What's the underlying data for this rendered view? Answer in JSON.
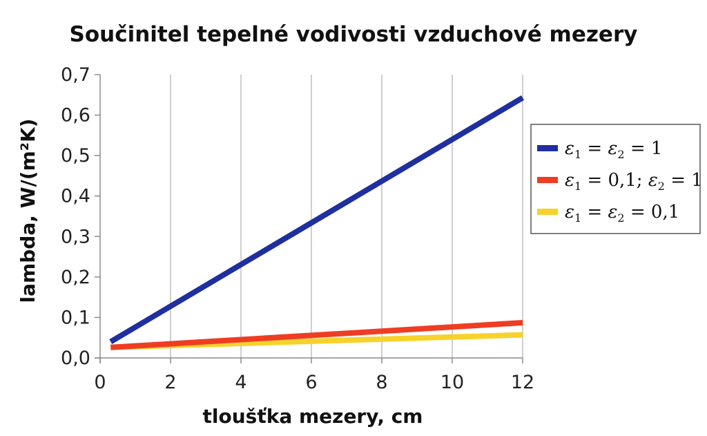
{
  "chart_data": {
    "type": "line",
    "title": "Součinitel tepelné vodivosti vzduchové mezery",
    "xlabel": "tloušťka mezery, cm",
    "ylabel": "lambda, W/(m²K)",
    "xlim": [
      0,
      12
    ],
    "ylim": [
      0,
      0.7
    ],
    "x_ticks": [
      "0",
      "2",
      "4",
      "6",
      "8",
      "10",
      "12"
    ],
    "y_ticks": [
      "0,0",
      "0,1",
      "0,2",
      "0,3",
      "0,4",
      "0,5",
      "0,6",
      "0,7"
    ],
    "grid": "vertical",
    "legend_position": "right",
    "series": [
      {
        "name": "ε1 = ε2 = 1",
        "legend_parts": [
          "ε",
          "1",
          " = ",
          "ε",
          "2",
          " = 1"
        ],
        "color": "#1f2f9f",
        "x": [
          0.3,
          12
        ],
        "y": [
          0.04,
          0.643
        ]
      },
      {
        "name": "ε1 = 0,1; ε2 = 1",
        "legend_parts": [
          "ε",
          "1",
          " = 0,1; ",
          "ε",
          "2",
          " = 1"
        ],
        "color": "#ee3d23",
        "x": [
          0.3,
          12
        ],
        "y": [
          0.026,
          0.087
        ]
      },
      {
        "name": "ε1 = ε2 = 0,1",
        "legend_parts": [
          "ε",
          "1",
          " = ",
          "ε",
          "2",
          " = 0,1"
        ],
        "color": "#f7d22b",
        "x": [
          0.3,
          12
        ],
        "y": [
          0.026,
          0.057
        ]
      }
    ]
  }
}
